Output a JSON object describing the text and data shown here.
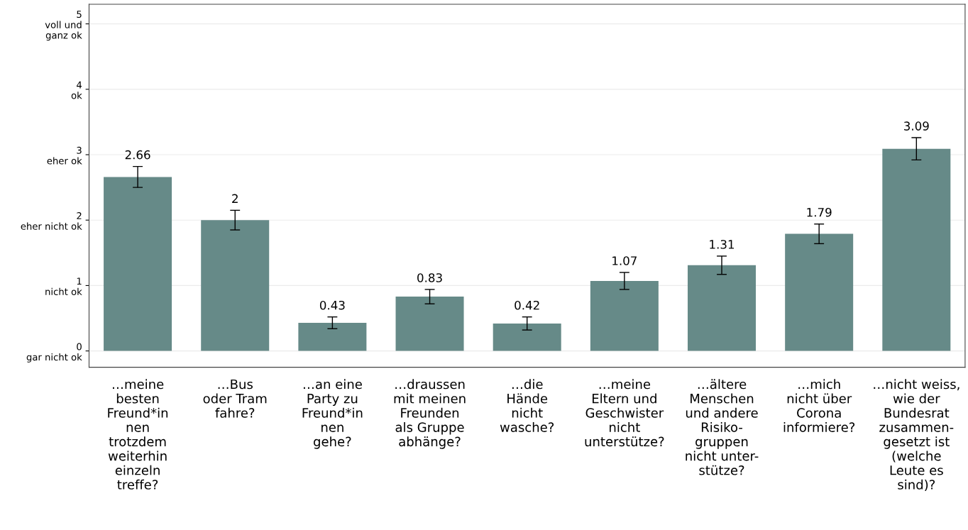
{
  "chart_data": {
    "type": "bar",
    "categories": [
      "…meine\nbesten\nFreund*in\nnen\ntrotzdem\nweiterhin\neinzeln\ntreffe?",
      "…Bus\noder Tram\nfahre?",
      "…an eine\nParty zu\nFreund*in\nnen\ngehe?",
      "…draussen\nmit meinen\nFreunden\nals Gruppe\nabhänge?",
      "…die\nHände\nnicht\nwasche?",
      "…meine\nEltern und\nGeschwister\nnicht\nunterstütze?",
      "…ältere\nMenschen\nund andere\nRisiko-\ngruppen\nnicht unter-\nstütze?",
      "…mich\nnicht über\nCorona\ninformiere?",
      "…nicht weiss,\nwie der\nBundesrat\nzusammen-\ngesetzt ist\n(welche\nLeute es\nsind)?"
    ],
    "values": [
      2.66,
      2,
      0.43,
      0.83,
      0.42,
      1.07,
      1.31,
      1.79,
      3.09
    ],
    "errors": [
      0.16,
      0.15,
      0.09,
      0.11,
      0.1,
      0.13,
      0.14,
      0.15,
      0.17
    ],
    "color": "#668a88",
    "data_labels": true,
    "ylim": [
      -0.25,
      5.3
    ],
    "yticks": [
      {
        "value": 0,
        "label": "0\ngar nicht ok"
      },
      {
        "value": 1,
        "label": "1\nnicht ok"
      },
      {
        "value": 2,
        "label": "2\neher nicht ok"
      },
      {
        "value": 3,
        "label": "3\neher ok"
      },
      {
        "value": 4,
        "label": "4\nok"
      },
      {
        "value": 5,
        "label": "5\nvoll und\nganz ok"
      }
    ],
    "grid": "y"
  }
}
